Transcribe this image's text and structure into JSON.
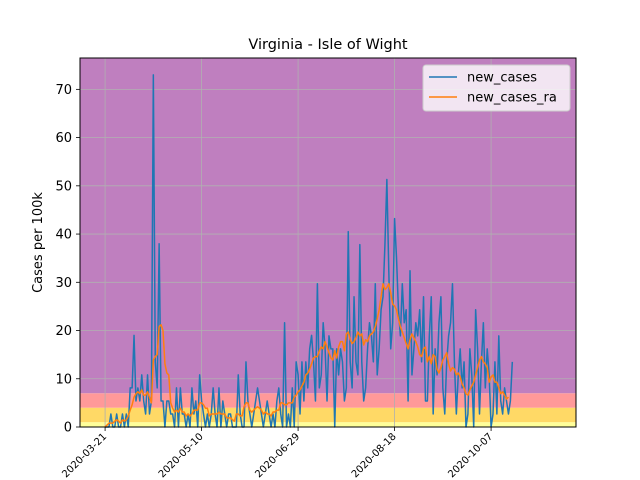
{
  "chart_data": {
    "type": "line",
    "title": "Virginia - Isle of Wight",
    "xlabel": "",
    "ylabel": "Cases per 100k",
    "ylim": [
      0,
      76.5
    ],
    "yticks": [
      0,
      10,
      20,
      30,
      40,
      50,
      60,
      70
    ],
    "x_start": "2020-03-08",
    "x_end": "2020-11-20",
    "xticks": [
      "2020-03-21",
      "2020-05-10",
      "2020-06-29",
      "2020-08-18",
      "2020-10-07"
    ],
    "grid": true,
    "legend_position": "top-right",
    "risk_bands": [
      {
        "from": 0,
        "to": 1,
        "color": "#ffff99"
      },
      {
        "from": 1,
        "to": 4,
        "color": "#ffd966"
      },
      {
        "from": 4,
        "to": 7,
        "color": "#ff9999"
      },
      {
        "from": 7,
        "to": 76.5,
        "color": "#bf7fbf"
      }
    ],
    "series": [
      {
        "name": "new_cases",
        "color": "#1f77b4",
        "start_date": "2020-03-21",
        "values": [
          0,
          0,
          0,
          2.7,
          0,
          0,
          2.7,
          0,
          0,
          2.7,
          0,
          2.7,
          0,
          8.1,
          8.1,
          19,
          5.4,
          8.1,
          5.4,
          10.8,
          5.4,
          2.7,
          10.8,
          2.7,
          5.4,
          73,
          13.5,
          8.1,
          38,
          5.4,
          5.4,
          0,
          5.4,
          5.4,
          2.7,
          2.7,
          0,
          8.1,
          0,
          8.1,
          2.7,
          2.7,
          0,
          2.7,
          0,
          8.1,
          2.7,
          5.4,
          0,
          10.8,
          5.4,
          2.7,
          0,
          2.7,
          0,
          2.7,
          8.1,
          2.7,
          0,
          8.1,
          0,
          5.4,
          2.7,
          0,
          2.7,
          2.7,
          0,
          0,
          0,
          10.8,
          2.7,
          0,
          0,
          13.5,
          5.4,
          2.7,
          0,
          2.7,
          5.4,
          8.1,
          5.4,
          2.7,
          0,
          2.7,
          5.4,
          2.7,
          0,
          2.7,
          0,
          5.4,
          8.1,
          2.7,
          0,
          21.6,
          0,
          2.7,
          0,
          8.1,
          0,
          13.5,
          10.8,
          2.7,
          13.5,
          5.4,
          13.5,
          8.1,
          16.2,
          19,
          13.5,
          5.4,
          29.7,
          8.1,
          10.8,
          21.6,
          16.2,
          5.4,
          18.9,
          16.2,
          16.2,
          0,
          16.2,
          10.8,
          16.2,
          13.5,
          5.4,
          8.1,
          40.5,
          13.5,
          8.1,
          27,
          13.5,
          10.8,
          37.8,
          13.5,
          5.4,
          8.1,
          16.2,
          21.6,
          18.9,
          13.5,
          29.7,
          10.8,
          16.2,
          24.3,
          27,
          37.8,
          51.3,
          32.4,
          16.2,
          21.6,
          43.2,
          35.1,
          24.3,
          18.9,
          29.7,
          21.6,
          24.3,
          5.4,
          32.4,
          10.8,
          16.2,
          21.6,
          18.9,
          24.3,
          13.5,
          27,
          5.4,
          5.4,
          18.9,
          27,
          2.7,
          16.2,
          10.8,
          21.6,
          27,
          8.1,
          2.7,
          13.5,
          18.9,
          21.6,
          29.7,
          13.5,
          2.7,
          10.8,
          16.2,
          8.1,
          13.5,
          0,
          2.7,
          16.2,
          10.8,
          0,
          24.3,
          16.2,
          2.7,
          13.5,
          21.6,
          8.1,
          16.2,
          10.8,
          0,
          2.7,
          13.5,
          2.7,
          18.9,
          5.4,
          2.7,
          8.1,
          5.4,
          2.7,
          5.4,
          13.5
        ]
      },
      {
        "name": "new_cases_ra",
        "color": "#ff7f0e",
        "start_date": "2020-03-21",
        "values": [
          0,
          0.4,
          0.8,
          0.8,
          0.8,
          1.2,
          1.5,
          1.2,
          0.8,
          1.5,
          1.2,
          1.5,
          2.3,
          3.5,
          4.6,
          6.2,
          6.9,
          7.3,
          6.9,
          7.7,
          6.6,
          6.6,
          7.3,
          6.2,
          5.0,
          13.9,
          14.6,
          15.0,
          20.8,
          21.2,
          20.0,
          13.1,
          11.2,
          10.8,
          5.0,
          3.9,
          3.1,
          3.5,
          3.1,
          3.9,
          3.1,
          3.1,
          2.3,
          2.7,
          2.3,
          2.7,
          3.5,
          3.5,
          3.5,
          5.0,
          5.0,
          4.6,
          3.9,
          3.9,
          2.3,
          2.7,
          2.7,
          2.7,
          2.7,
          3.1,
          2.7,
          2.7,
          2.7,
          1.9,
          1.9,
          1.9,
          1.5,
          1.2,
          2.7,
          2.7,
          2.3,
          2.3,
          4.2,
          5.0,
          5.0,
          3.5,
          3.1,
          3.5,
          3.9,
          4.2,
          3.9,
          3.5,
          2.7,
          3.1,
          2.7,
          2.7,
          2.3,
          3.1,
          3.1,
          3.5,
          3.5,
          5.0,
          5.0,
          4.6,
          4.6,
          5.0,
          5.0,
          5.0,
          6.2,
          6.6,
          7.3,
          7.7,
          8.5,
          9.3,
          10.8,
          11.2,
          12.0,
          13.1,
          14.3,
          14.6,
          14.6,
          15.8,
          16.6,
          16.2,
          17.7,
          16.6,
          15.4,
          14.3,
          13.9,
          15.8,
          14.3,
          16.6,
          17.7,
          17.7,
          15.8,
          19.3,
          19.7,
          18.1,
          17.3,
          17.7,
          18.5,
          19.7,
          18.9,
          19.3,
          17.0,
          18.1,
          17.7,
          18.9,
          19.3,
          19.7,
          20.8,
          22.4,
          24.3,
          27.0,
          29.7,
          28.5,
          28.9,
          29.7,
          27.8,
          25.5,
          25.1,
          24.3,
          22.4,
          20.8,
          19.7,
          18.5,
          17.3,
          16.2,
          18.1,
          19.3,
          18.5,
          17.7,
          16.6,
          15.0,
          14.6,
          16.2,
          16.6,
          13.5,
          14.6,
          13.1,
          15.0,
          14.6,
          12.0,
          11.2,
          12.3,
          13.9,
          14.6,
          15.4,
          13.1,
          11.6,
          12.3,
          12.0,
          10.8,
          11.2,
          10.4,
          8.9,
          8.1,
          6.9,
          6.6,
          7.7,
          8.5,
          9.3,
          10.8,
          12.3,
          13.9,
          14.6,
          13.5,
          13.1,
          12.3,
          9.3,
          10.4,
          10.8,
          9.3,
          9.3,
          8.1,
          6.9,
          7.3,
          6.6,
          5.8,
          6.2
        ]
      }
    ]
  }
}
